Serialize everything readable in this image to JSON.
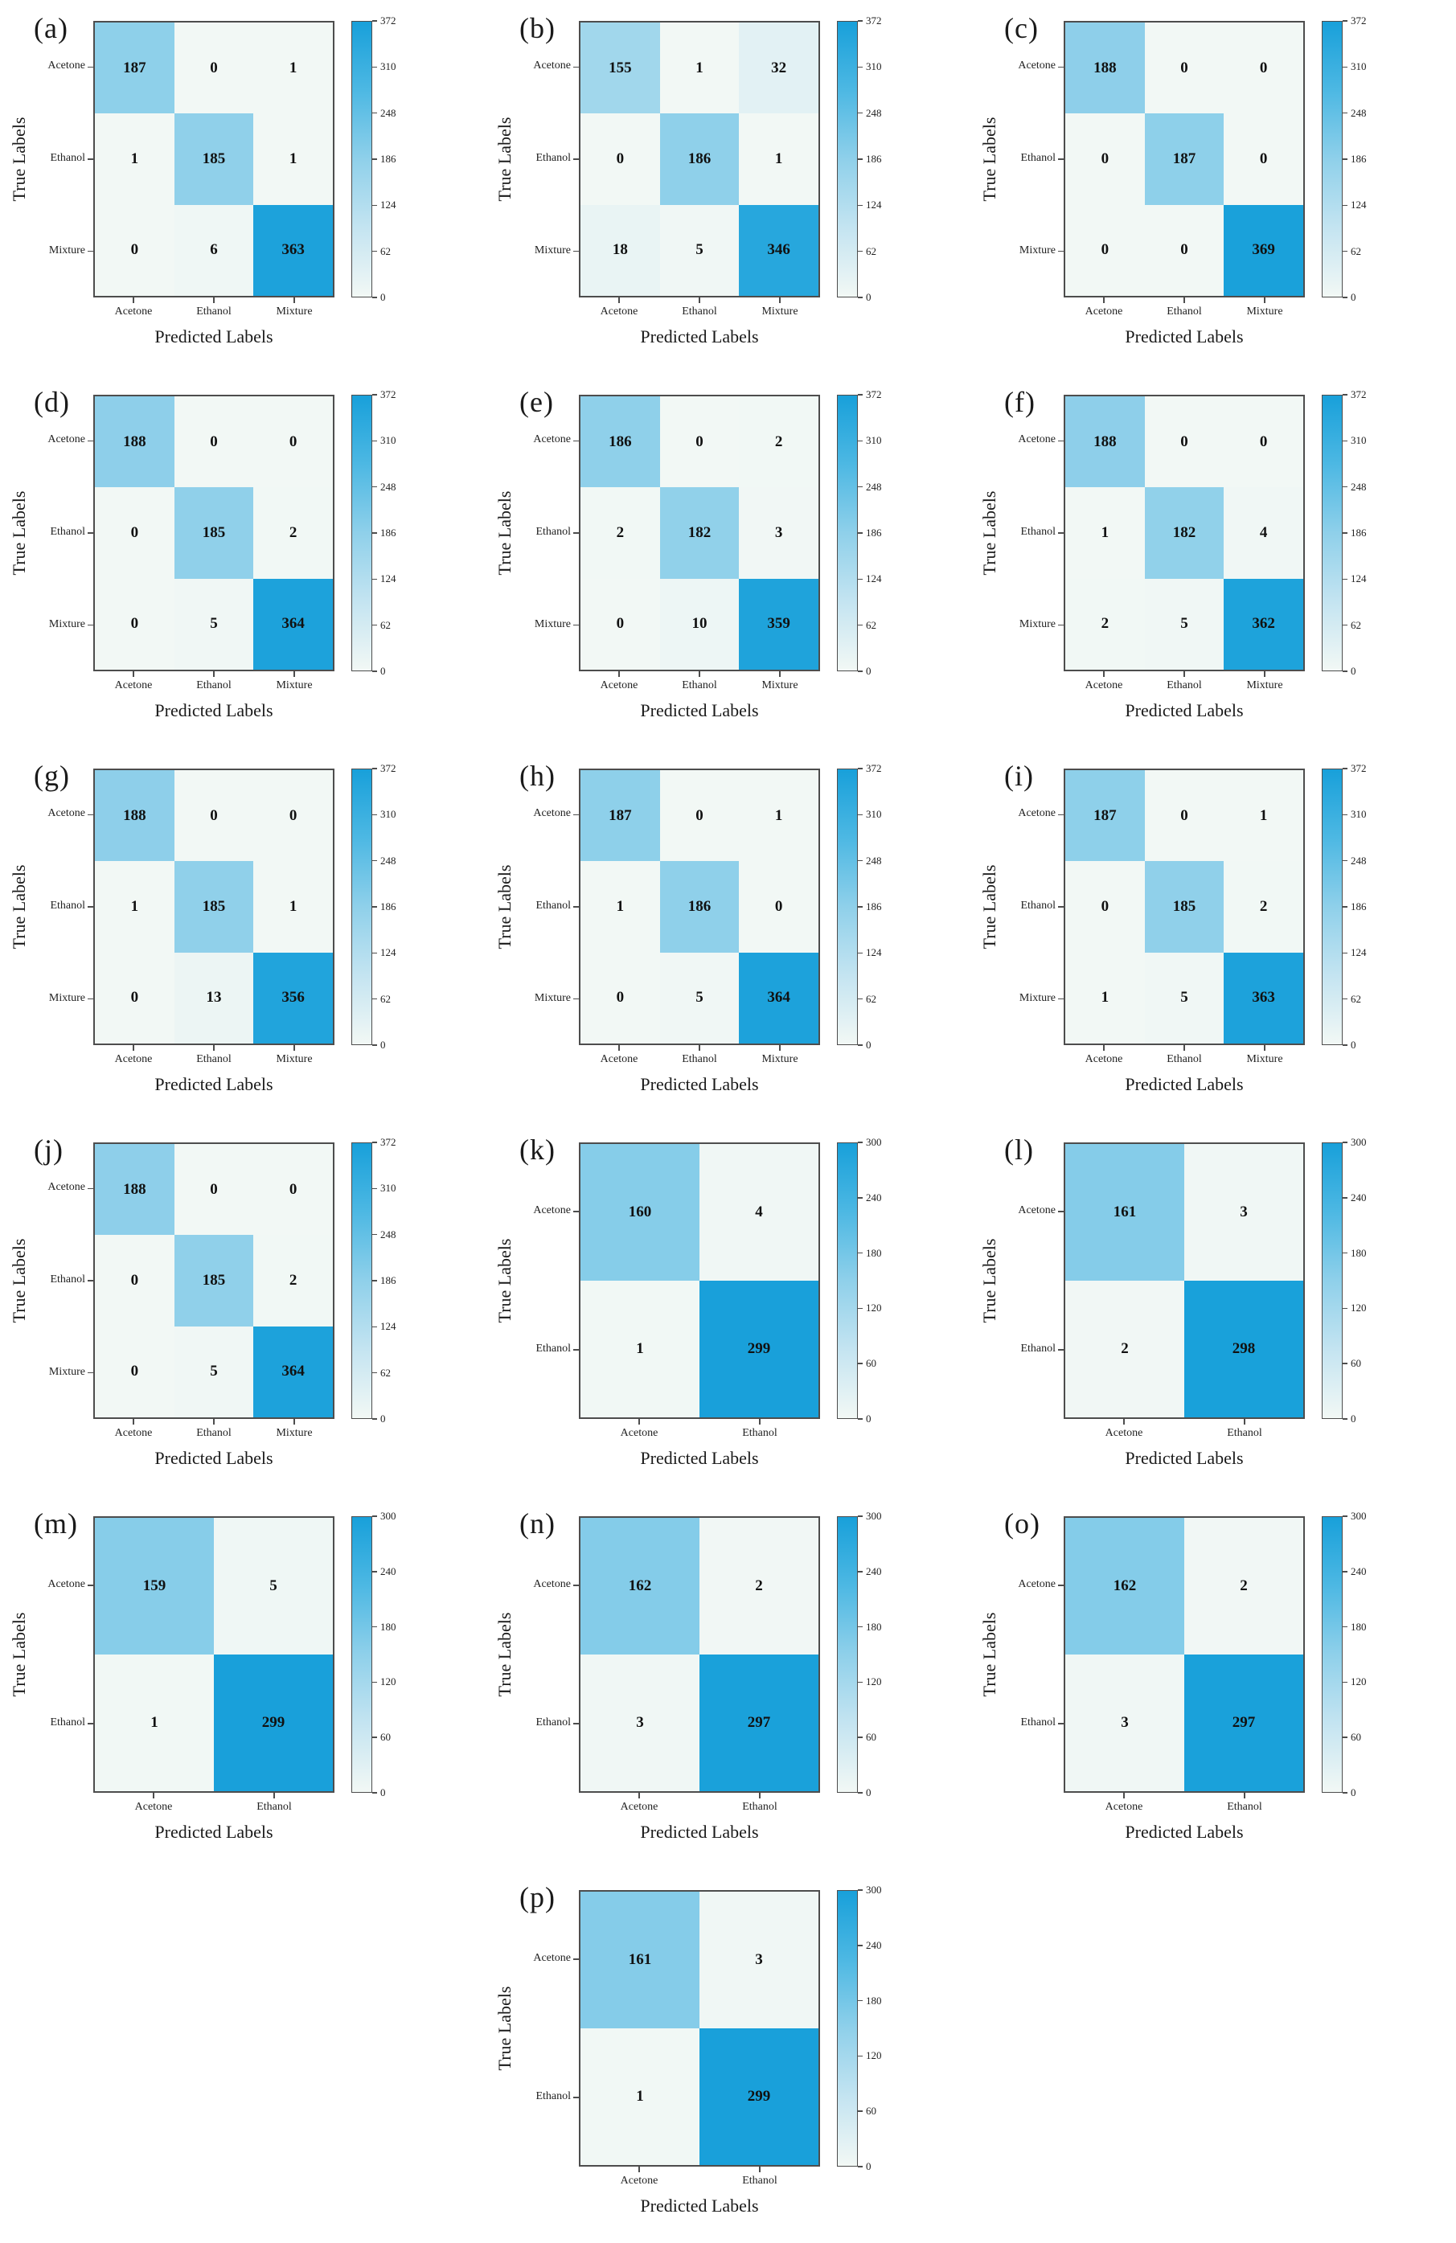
{
  "figure": {
    "background": "#ffffff",
    "axis_label_x": "Predicted Labels",
    "axis_label_y": "True Labels",
    "border_color": "#4d4d4d",
    "cell_text_color": "#111111",
    "cmap_stops": [
      "#f2f8f5",
      "#c4e4f1",
      "#8fd0ea",
      "#4db8e3",
      "#18a0da"
    ]
  },
  "chart_data": [
    {
      "id": "a",
      "type": "heatmap",
      "panel_label": "(a)",
      "xlabel": "Predicted Labels",
      "ylabel": "True Labels",
      "classes": [
        "Acetone",
        "Ethanol",
        "Mixture"
      ],
      "matrix": [
        [
          187,
          0,
          1
        ],
        [
          1,
          185,
          1
        ],
        [
          0,
          6,
          363
        ]
      ],
      "vmax": 372,
      "colorbar_ticks": [
        372,
        310,
        248,
        186,
        124,
        62,
        0
      ],
      "grid": {
        "row": 0,
        "col": 0
      }
    },
    {
      "id": "b",
      "type": "heatmap",
      "panel_label": "(b)",
      "xlabel": "Predicted Labels",
      "ylabel": "True Labels",
      "classes": [
        "Acetone",
        "Ethanol",
        "Mixture"
      ],
      "matrix": [
        [
          155,
          1,
          32
        ],
        [
          0,
          186,
          1
        ],
        [
          18,
          5,
          346
        ]
      ],
      "vmax": 372,
      "colorbar_ticks": [
        372,
        310,
        248,
        186,
        124,
        62,
        0
      ],
      "grid": {
        "row": 0,
        "col": 1
      }
    },
    {
      "id": "c",
      "type": "heatmap",
      "panel_label": "(c)",
      "xlabel": "Predicted Labels",
      "ylabel": "True Labels",
      "classes": [
        "Acetone",
        "Ethanol",
        "Mixture"
      ],
      "matrix": [
        [
          188,
          0,
          0
        ],
        [
          0,
          187,
          0
        ],
        [
          0,
          0,
          369
        ]
      ],
      "vmax": 372,
      "colorbar_ticks": [
        372,
        310,
        248,
        186,
        124,
        62,
        0
      ],
      "grid": {
        "row": 0,
        "col": 2
      }
    },
    {
      "id": "d",
      "type": "heatmap",
      "panel_label": "(d)",
      "xlabel": "Predicted Labels",
      "ylabel": "True Labels",
      "classes": [
        "Acetone",
        "Ethanol",
        "Mixture"
      ],
      "matrix": [
        [
          188,
          0,
          0
        ],
        [
          0,
          185,
          2
        ],
        [
          0,
          5,
          364
        ]
      ],
      "vmax": 372,
      "colorbar_ticks": [
        372,
        310,
        248,
        186,
        124,
        62,
        0
      ],
      "grid": {
        "row": 1,
        "col": 0
      }
    },
    {
      "id": "e",
      "type": "heatmap",
      "panel_label": "(e)",
      "xlabel": "Predicted Labels",
      "ylabel": "True Labels",
      "classes": [
        "Acetone",
        "Ethanol",
        "Mixture"
      ],
      "matrix": [
        [
          186,
          0,
          2
        ],
        [
          2,
          182,
          3
        ],
        [
          0,
          10,
          359
        ]
      ],
      "vmax": 372,
      "colorbar_ticks": [
        372,
        310,
        248,
        186,
        124,
        62,
        0
      ],
      "grid": {
        "row": 1,
        "col": 1
      }
    },
    {
      "id": "f",
      "type": "heatmap",
      "panel_label": "(f)",
      "xlabel": "Predicted Labels",
      "ylabel": "True Labels",
      "classes": [
        "Acetone",
        "Ethanol",
        "Mixture"
      ],
      "matrix": [
        [
          188,
          0,
          0
        ],
        [
          1,
          182,
          4
        ],
        [
          2,
          5,
          362
        ]
      ],
      "vmax": 372,
      "colorbar_ticks": [
        372,
        310,
        248,
        186,
        124,
        62,
        0
      ],
      "grid": {
        "row": 1,
        "col": 2
      }
    },
    {
      "id": "g",
      "type": "heatmap",
      "panel_label": "(g)",
      "xlabel": "Predicted Labels",
      "ylabel": "True Labels",
      "classes": [
        "Acetone",
        "Ethanol",
        "Mixture"
      ],
      "matrix": [
        [
          188,
          0,
          0
        ],
        [
          1,
          185,
          1
        ],
        [
          0,
          13,
          356
        ]
      ],
      "vmax": 372,
      "colorbar_ticks": [
        372,
        310,
        248,
        186,
        124,
        62,
        0
      ],
      "grid": {
        "row": 2,
        "col": 0
      }
    },
    {
      "id": "h",
      "type": "heatmap",
      "panel_label": "(h)",
      "xlabel": "Predicted Labels",
      "ylabel": "True Labels",
      "classes": [
        "Acetone",
        "Ethanol",
        "Mixture"
      ],
      "matrix": [
        [
          187,
          0,
          1
        ],
        [
          1,
          186,
          0
        ],
        [
          0,
          5,
          364
        ]
      ],
      "vmax": 372,
      "colorbar_ticks": [
        372,
        310,
        248,
        186,
        124,
        62,
        0
      ],
      "grid": {
        "row": 2,
        "col": 1
      }
    },
    {
      "id": "i",
      "type": "heatmap",
      "panel_label": "(i)",
      "xlabel": "Predicted Labels",
      "ylabel": "True Labels",
      "classes": [
        "Acetone",
        "Ethanol",
        "Mixture"
      ],
      "matrix": [
        [
          187,
          0,
          1
        ],
        [
          0,
          185,
          2
        ],
        [
          1,
          5,
          363
        ]
      ],
      "vmax": 372,
      "colorbar_ticks": [
        372,
        310,
        248,
        186,
        124,
        62,
        0
      ],
      "grid": {
        "row": 2,
        "col": 2
      }
    },
    {
      "id": "j",
      "type": "heatmap",
      "panel_label": "(j)",
      "xlabel": "Predicted Labels",
      "ylabel": "True Labels",
      "classes": [
        "Acetone",
        "Ethanol",
        "Mixture"
      ],
      "matrix": [
        [
          188,
          0,
          0
        ],
        [
          0,
          185,
          2
        ],
        [
          0,
          5,
          364
        ]
      ],
      "vmax": 372,
      "colorbar_ticks": [
        372,
        310,
        248,
        186,
        124,
        62,
        0
      ],
      "grid": {
        "row": 3,
        "col": 0
      }
    },
    {
      "id": "k",
      "type": "heatmap",
      "panel_label": "(k)",
      "xlabel": "Predicted Labels",
      "ylabel": "True Labels",
      "classes": [
        "Acetone",
        "Ethanol"
      ],
      "matrix": [
        [
          160,
          4
        ],
        [
          1,
          299
        ]
      ],
      "vmax": 300,
      "colorbar_ticks": [
        300,
        240,
        180,
        120,
        60,
        0
      ],
      "grid": {
        "row": 3,
        "col": 1
      }
    },
    {
      "id": "l",
      "type": "heatmap",
      "panel_label": "(l)",
      "xlabel": "Predicted Labels",
      "ylabel": "True Labels",
      "classes": [
        "Acetone",
        "Ethanol"
      ],
      "matrix": [
        [
          161,
          3
        ],
        [
          2,
          298
        ]
      ],
      "vmax": 300,
      "colorbar_ticks": [
        300,
        240,
        180,
        120,
        60,
        0
      ],
      "grid": {
        "row": 3,
        "col": 2
      }
    },
    {
      "id": "m",
      "type": "heatmap",
      "panel_label": "(m)",
      "xlabel": "Predicted Labels",
      "ylabel": "True Labels",
      "classes": [
        "Acetone",
        "Ethanol"
      ],
      "matrix": [
        [
          159,
          5
        ],
        [
          1,
          299
        ]
      ],
      "vmax": 300,
      "colorbar_ticks": [
        300,
        240,
        180,
        120,
        60,
        0
      ],
      "grid": {
        "row": 4,
        "col": 0
      }
    },
    {
      "id": "n",
      "type": "heatmap",
      "panel_label": "(n)",
      "xlabel": "Predicted Labels",
      "ylabel": "True Labels",
      "classes": [
        "Acetone",
        "Ethanol"
      ],
      "matrix": [
        [
          162,
          2
        ],
        [
          3,
          297
        ]
      ],
      "vmax": 300,
      "colorbar_ticks": [
        300,
        240,
        180,
        120,
        60,
        0
      ],
      "grid": {
        "row": 4,
        "col": 1
      }
    },
    {
      "id": "o",
      "type": "heatmap",
      "panel_label": "(o)",
      "xlabel": "Predicted Labels",
      "ylabel": "True Labels",
      "classes": [
        "Acetone",
        "Ethanol"
      ],
      "matrix": [
        [
          162,
          2
        ],
        [
          3,
          297
        ]
      ],
      "vmax": 300,
      "colorbar_ticks": [
        300,
        240,
        180,
        120,
        60,
        0
      ],
      "grid": {
        "row": 4,
        "col": 2
      }
    },
    {
      "id": "p",
      "type": "heatmap",
      "panel_label": "(p)",
      "xlabel": "Predicted Labels",
      "ylabel": "True Labels",
      "classes": [
        "Acetone",
        "Ethanol"
      ],
      "matrix": [
        [
          161,
          3
        ],
        [
          1,
          299
        ]
      ],
      "vmax": 300,
      "colorbar_ticks": [
        300,
        240,
        180,
        120,
        60,
        0
      ],
      "grid": {
        "row": 5,
        "col": 1
      }
    }
  ]
}
